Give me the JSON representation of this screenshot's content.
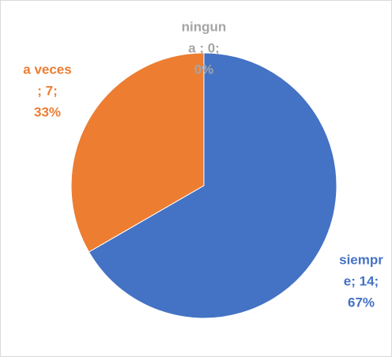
{
  "chart_data": {
    "type": "pie",
    "values": [
      14,
      7,
      0
    ],
    "value_labels": [
      [
        "siempr",
        "e; 14;",
        "67%"
      ],
      [
        "a veces",
        "; 7;",
        "33%"
      ],
      [
        "ningun",
        "a ; 0;",
        "0%"
      ]
    ],
    "colors": [
      "#4472c4",
      "#ed7d31",
      "#a5a5a5"
    ]
  }
}
